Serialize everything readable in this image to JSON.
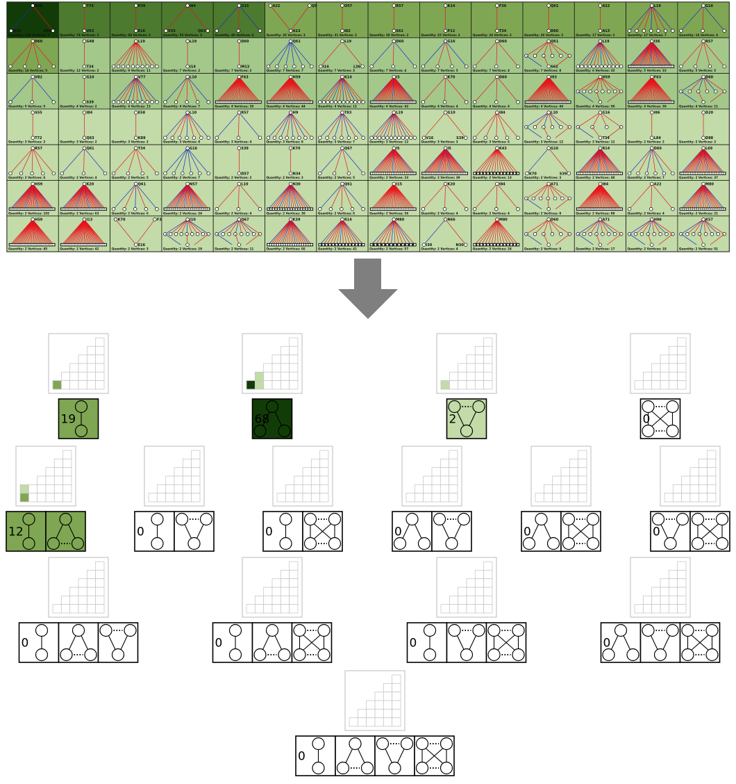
{
  "colors": {
    "edge_red": "#e8141b",
    "edge_blue": "#1a2cc4",
    "arrow": "#7f7f7f",
    "scale": [
      "#ffffff",
      "#c2dba8",
      "#a3c88a",
      "#7fa653",
      "#4c7a2e",
      "#123c07"
    ]
  },
  "tiles": [
    {
      "top": "N56",
      "left": "Q39",
      "right": "A50",
      "pattern": "v",
      "blue": 1,
      "caption": "Quantity: 144 Vertices: 3",
      "shade": 5
    },
    {
      "top": "T74",
      "left": "",
      "right": "",
      "bottom": "V63",
      "pattern": "chain",
      "caption": "Quantity: 74 Vertices: 2",
      "shade": 4
    },
    {
      "top": "P39",
      "left": "",
      "right": "",
      "bottom": "E16",
      "pattern": "chain",
      "caption": "Quantity: 68 Vertices: 2",
      "shade": 4
    },
    {
      "top": "I84",
      "left": "V33",
      "right": "Q63",
      "pattern": "v",
      "caption": "Quantity: 55 Vertices: 3",
      "shade": 4
    },
    {
      "top": "G15",
      "left": "K70",
      "right": "R70",
      "mid": "S39",
      "pattern": "fan",
      "n": 3,
      "blue": 1,
      "caption": "Quantity: 40 Vertices: 4",
      "shade": 4
    },
    {
      "top": "A22",
      "top2": "Q92",
      "left": "",
      "right": "",
      "bottom": "A13",
      "pattern": "merge",
      "caption": "Quantity: 35 Vertices: 3",
      "shade": 3
    },
    {
      "top": "O57",
      "bottom": "I82",
      "pattern": "chain",
      "caption": "Quantity: 31 Vertices: 2",
      "shade": 3
    },
    {
      "top": "R57",
      "bottom": "S61",
      "pattern": "chain",
      "caption": "Quantity: 28 Vertices: 2",
      "shade": 3
    },
    {
      "top": "K14",
      "bottom": "P12",
      "pattern": "chain",
      "caption": "Quantity: 25 Vertices: 2",
      "shade": 3
    },
    {
      "top": "F36",
      "bottom": "T34",
      "pattern": "chain",
      "caption": "Quantity: 24 Vertices: 2",
      "shade": 3
    },
    {
      "top": "Q61",
      "bottom": "D60",
      "pattern": "chain",
      "caption": "Quantity: 20 Vertices: 2",
      "shade": 3
    },
    {
      "top": "A22",
      "bottom": "A13",
      "pattern": "chain",
      "caption": "Quantity: 17 Vertices: 2",
      "shade": 3
    },
    {
      "top": "L19",
      "pattern": "fan",
      "n": 7,
      "blue": 2,
      "caption": "Quantity: 17 Vertices: 7",
      "shade": 3
    },
    {
      "top": "G16",
      "left": "T63",
      "right": "A56",
      "mid": "P39",
      "pattern": "fan",
      "n": 3,
      "blue": 1,
      "caption": "Quantity: 16 Vertices: 4",
      "shade": 3
    },
    {
      "top": "D60",
      "pattern": "fan",
      "n": 4,
      "caption": "Quantity: 14 Vertices: 5",
      "shade": 3
    },
    {
      "top": "G48",
      "bottom": "T34",
      "pattern": "chain",
      "caption": "Quantity: 12 Vertices: 2",
      "shade": 2
    },
    {
      "top": "L19",
      "pattern": "fan",
      "n": 10,
      "caption": "Quantity: 9 Vertices: 11",
      "shade": 2
    },
    {
      "top": "L19",
      "bottom": "I14",
      "pattern": "chain",
      "caption": "Quantity: 7 Vertices: 2",
      "shade": 2
    },
    {
      "top": "D60",
      "bottom": "M13",
      "pattern": "chain",
      "caption": "Quantity: 7 Vertices: 2",
      "shade": 2
    },
    {
      "top": "Q61",
      "pattern": "fan",
      "n": 6,
      "blue": 3,
      "caption": "Quantity: 7 Vertices: 7",
      "shade": 2
    },
    {
      "top": "L19",
      "left": "I14",
      "right": "L36",
      "pattern": "v",
      "caption": "Quantity: 7 Vertices: 3",
      "shade": 2
    },
    {
      "top": "D60",
      "pattern": "fan",
      "n": 3,
      "blue": 1,
      "caption": "Quantity: 7 Vertices: 4",
      "shade": 2
    },
    {
      "top": "G16",
      "pattern": "fan",
      "n": 4,
      "blue": 1,
      "caption": "Quantity: 7 Vertices: 5",
      "shade": 2
    },
    {
      "top": "D60",
      "left": "A16",
      "right": "N13",
      "mid": "V36",
      "pattern": "fan",
      "n": 3,
      "caption": "Quantity: 7 Vertices: 4",
      "shade": 2
    },
    {
      "top": "Q61",
      "bottom": "S61",
      "pattern": "cluster",
      "n": 6,
      "caption": "Quantity: 7 Vertices: 8",
      "shade": 2
    },
    {
      "top": "L19",
      "pattern": "fan",
      "n": 12,
      "blue": 3,
      "caption": "Quantity: 6 Vertices: 33",
      "shade": 2
    },
    {
      "top": "I36",
      "pattern": "dense",
      "n": 30,
      "blue": 4,
      "caption": "Quantity: 5 Vertices: 33",
      "shade": 2
    },
    {
      "top": "R57",
      "pattern": "fan",
      "n": 4,
      "caption": "Quantity: 5 Vertices: 5",
      "shade": 2
    },
    {
      "top": "V82",
      "pattern": "fan",
      "n": 3,
      "blue": 1,
      "caption": "Quantity: 5 Vertices: 5",
      "shade": 2
    },
    {
      "top": "G10",
      "bottom": "S39",
      "pattern": "chain",
      "caption": "Quantity: 4 Vertices: 2",
      "shade": 2
    },
    {
      "top": "V77",
      "pattern": "fan",
      "n": 10,
      "blue": 3,
      "caption": "Quantity: 4 Vertices: 13",
      "shade": 2
    },
    {
      "top": "L10",
      "pattern": "fan",
      "n": 5,
      "blue": 1,
      "caption": "Quantity: 4 Vertices: 7",
      "shade": 2
    },
    {
      "top": "F63",
      "pattern": "dense",
      "n": 28,
      "caption": "Quantity: 4 Vertices: 29",
      "shade": 2
    },
    {
      "top": "H59",
      "pattern": "dense",
      "n": 30,
      "caption": "Quantity: 4 Vertices: 44",
      "shade": 2
    },
    {
      "top": "K14",
      "pattern": "fan",
      "n": 12,
      "blue": 3,
      "caption": "Quantity: 4 Vertices: 12",
      "shade": 2
    },
    {
      "top": "I3",
      "pattern": "dense",
      "n": 30,
      "blue": 2,
      "caption": "Quantity: 4 Vertices: 42",
      "shade": 2
    },
    {
      "top": "K70",
      "pattern": "fan",
      "n": 3,
      "caption": "Quantity: 4 Vertices: 4",
      "shade": 2
    },
    {
      "top": "D60",
      "pattern": "fan",
      "n": 3,
      "caption": "Quantity: 4 Vertices: 4",
      "shade": 2
    },
    {
      "top": "I93",
      "pattern": "dense",
      "n": 30,
      "caption": "Quantity: 4 Vertices: 44",
      "shade": 2
    },
    {
      "top": "H59",
      "pattern": "cluster2",
      "n": 8,
      "caption": "Quantity: 4 Vertices: 50",
      "shade": 2
    },
    {
      "top": "F63",
      "bottom": "V63",
      "pattern": "dense",
      "n": 30,
      "caption": "Quantity: 4 Vertices: 38",
      "shade": 2
    },
    {
      "top": "D60",
      "pattern": "cluster",
      "n": 6,
      "blue": 2,
      "caption": "Quantity: 4 Vertices: 11",
      "shade": 2
    },
    {
      "top": "S55",
      "bottom": "T72",
      "pattern": "chain",
      "caption": "Quantity: 3 Vertices: 2",
      "shade": 1
    },
    {
      "top": "I84",
      "bottom": "Q63",
      "pattern": "chain",
      "caption": "Quantity: 3 Vertices: 2",
      "shade": 1
    },
    {
      "top": "E58",
      "bottom": "K89",
      "pattern": "chain",
      "caption": "Quantity: 3 Vertices: 2",
      "shade": 1
    },
    {
      "top": "L10",
      "pattern": "fan",
      "n": 7,
      "blue": 2,
      "caption": "Quantity: 3 Vertices: 8",
      "shade": 1
    },
    {
      "top": "R57",
      "pattern": "fan",
      "n": 3,
      "blue": 1,
      "caption": "Quantity: 3 Vertices: 4",
      "shade": 1
    },
    {
      "top": "H9",
      "pattern": "fan",
      "n": 8,
      "blue": 3,
      "caption": "Quantity: 3 Vertices: 8",
      "shade": 1
    },
    {
      "top": "T83",
      "pattern": "fan",
      "n": 7,
      "blue": 3,
      "caption": "Quantity: 3 Vertices: 7",
      "shade": 1
    },
    {
      "top": "L19",
      "pattern": "fan",
      "n": 12,
      "blue": 3,
      "caption": "Quantity: 3 Vertices: 12",
      "shade": 1
    },
    {
      "top": "G10",
      "left": "V16",
      "right": "S39",
      "pattern": "v",
      "caption": "Quantity: 3 Vertices: 3",
      "shade": 1
    },
    {
      "top": "I84",
      "pattern": "fan",
      "n": 5,
      "caption": "Quantity: 3 Vertices: 6",
      "shade": 1
    },
    {
      "top": "L10",
      "pattern": "cluster",
      "n": 6,
      "blue": 2,
      "caption": "Quantity: 3 Vertices: 12",
      "shade": 1
    },
    {
      "top": "G16",
      "bottom": "T34",
      "pattern": "cluster",
      "n": 4,
      "caption": "Quantity: 3 Vertices: 12",
      "shade": 1
    },
    {
      "top": "I86",
      "bottom": "L84",
      "pattern": "chain",
      "caption": "Quantity: 2 Vertices: 2",
      "shade": 1
    },
    {
      "top": "D20",
      "bottom": "D88",
      "pattern": "chain",
      "caption": "Quantity: 2 Vertices: 2",
      "shade": 1
    },
    {
      "top": "R57",
      "pattern": "fan",
      "n": 5,
      "caption": "Quantity: 2 Vertices: 6",
      "shade": 1
    },
    {
      "top": "Q61",
      "pattern": "fan",
      "n": 3,
      "blue": 1,
      "caption": "Quantity: 2 Vertices: 4",
      "shade": 1
    },
    {
      "top": "T34",
      "pattern": "fan",
      "n": 4,
      "caption": "Quantity: 2 Vertices: 5",
      "shade": 1
    },
    {
      "top": "G16",
      "pattern": "fan",
      "n": 6,
      "blue": 3,
      "caption": "Quantity: 2 Vertices: 7",
      "shade": 1
    },
    {
      "top": "S39",
      "bottom": "D57",
      "pattern": "chain",
      "caption": "Quantity: 2 Vertices: 2",
      "shade": 1
    },
    {
      "top": "K70",
      "bottom": "N34",
      "pattern": "chain",
      "caption": "Quantity: 2 Vertices: 2",
      "shade": 1
    },
    {
      "top": "Q67",
      "pattern": "fan",
      "n": 4,
      "blue": 1,
      "caption": "Quantity: 2 Vertices: 5",
      "shade": 1
    },
    {
      "top": "I5",
      "pattern": "dense",
      "n": 24,
      "blue": 2,
      "caption": "Quantity: 2 Vertices: 33",
      "shade": 1
    },
    {
      "top": "I5",
      "pattern": "dense",
      "n": 28,
      "blue": 3,
      "caption": "Quantity: 2 Vertices: 39",
      "shade": 1
    },
    {
      "top": "K43",
      "pattern": "dense",
      "n": 14,
      "caption": "Quantity: 2 Vertices: 13",
      "shade": 1
    },
    {
      "top": "G16",
      "left": "K70",
      "right": "S39",
      "pattern": "v",
      "blue": 1,
      "caption": "Quantity: 2 Vertices: 3",
      "shade": 1
    },
    {
      "top": "R14",
      "pattern": "dense",
      "n": 26,
      "blue": 4,
      "caption": "Quantity: 2 Vertices: 40",
      "shade": 1
    },
    {
      "top": "D60",
      "pattern": "fan",
      "n": 6,
      "blue": 2,
      "caption": "Quantity: 2 Vertices: 7",
      "shade": 1
    },
    {
      "top": "L69",
      "pattern": "dense",
      "n": 26,
      "blue": 3,
      "caption": "Quantity: 2 Vertices: 37",
      "shade": 1
    },
    {
      "top": "H59",
      "pattern": "dense",
      "n": 32,
      "blue": 3,
      "caption": "Quantity: 2 Vertices: 102",
      "shade": 1
    },
    {
      "top": "K20",
      "pattern": "dense",
      "n": 30,
      "blue": 3,
      "caption": "Quantity: 2 Vertices: 63",
      "shade": 1
    },
    {
      "top": "Q61",
      "pattern": "fan",
      "n": 5,
      "blue": 2,
      "caption": "Quantity: 2 Vertices: 6",
      "shade": 1
    },
    {
      "top": "N57",
      "pattern": "dense",
      "n": 24,
      "blue": 4,
      "caption": "Quantity: 2 Vertices: 24",
      "shade": 1
    },
    {
      "top": "L10",
      "pattern": "fan",
      "n": 3,
      "caption": "Quantity: 2 Vertices: 4",
      "shade": 1
    },
    {
      "top": "N30",
      "pattern": "dense",
      "n": 18,
      "blue": 4,
      "caption": "Quantity: 2 Vertices: 30",
      "shade": 1
    },
    {
      "top": "Q61",
      "pattern": "fan",
      "n": 5,
      "blue": 1,
      "caption": "Quantity: 2 Vertices: 6",
      "shade": 1
    },
    {
      "top": "I15",
      "pattern": "dense",
      "n": 26,
      "caption": "Quantity: 2 Vertices: 36",
      "shade": 1
    },
    {
      "top": "K20",
      "pattern": "fan",
      "n": 3,
      "caption": "Quantity: 2 Vertices: 4",
      "shade": 1
    },
    {
      "top": "I84",
      "pattern": "fan",
      "n": 3,
      "caption": "Quantity: 2 Vertices: 4",
      "shade": 1
    },
    {
      "top": "A71",
      "pattern": "cluster",
      "n": 7,
      "caption": "Quantity: 2 Vertices: 8",
      "shade": 1
    },
    {
      "top": "I84",
      "pattern": "dense",
      "n": 30,
      "caption": "Quantity: 2 Vertices: 88",
      "shade": 1
    },
    {
      "top": "A22",
      "pattern": "fan",
      "n": 3,
      "caption": "Quantity: 2 Vertices: 4",
      "shade": 1
    },
    {
      "top": "M80",
      "pattern": "dense",
      "n": 22,
      "blue": 3,
      "caption": "Quantity: 2 Vertices: 21",
      "shade": 1
    },
    {
      "top": "H59",
      "pattern": "dense",
      "n": 30,
      "caption": "Quantity: 2 Vertices: 45",
      "shade": 1
    },
    {
      "top": "I13",
      "pattern": "dense",
      "n": 30,
      "caption": "Quantity: 2 Vertices: 42",
      "shade": 1
    },
    {
      "top": "K70",
      "top2": "F38",
      "bottom": "E16",
      "pattern": "merge",
      "caption": "Quantity: 2 Vertices: 3",
      "shade": 1
    },
    {
      "top": "I10",
      "pattern": "cluster2",
      "n": 9,
      "blue": 2,
      "caption": "Quantity: 2 Vertices: 19",
      "shade": 1
    },
    {
      "top": "Q67",
      "pattern": "cluster",
      "n": 8,
      "blue": 2,
      "caption": "Quantity: 2 Vertices: 11",
      "shade": 1
    },
    {
      "top": "K39",
      "pattern": "dense",
      "n": 20,
      "blue": 3,
      "caption": "Quantity: 2 Vertices: 66",
      "shade": 1
    },
    {
      "top": "R14",
      "pattern": "dense",
      "n": 14,
      "blue": 2,
      "caption": "Quantity: 2 Vertices: 41",
      "shade": 1
    },
    {
      "top": "M80",
      "pattern": "dense",
      "n": 12,
      "blue": 2,
      "caption": "Quantity: 2 Vertices: 57",
      "shade": 1
    },
    {
      "top": "N66",
      "left": "I30",
      "right": "N30",
      "pattern": "v",
      "blue": 1,
      "caption": "Quantity: 2 Vertices: 4",
      "shade": 1
    },
    {
      "top": "M80",
      "pattern": "dense",
      "n": 14,
      "caption": "Quantity: 2 Vertices: 24",
      "shade": 1
    },
    {
      "top": "D60",
      "pattern": "cluster",
      "n": 6,
      "caption": "Quantity: 2 Vertices: 9",
      "shade": 1
    },
    {
      "top": "A71",
      "pattern": "cluster2",
      "n": 8,
      "blue": 2,
      "caption": "Quantity: 2 Vertices: 17",
      "shade": 1
    },
    {
      "top": "H96",
      "pattern": "cluster2",
      "n": 8,
      "blue": 2,
      "caption": "Quantity: 2 Vertices: 18",
      "shade": 1
    },
    {
      "top": "K57",
      "pattern": "cluster2",
      "n": 8,
      "blue": 2,
      "caption": "Quantity: 2 Vertices: 51",
      "shade": 1
    }
  ],
  "levels": [
    {
      "rows": 1,
      "items": [
        {
          "filled": [
            [
              0,
              0
            ]
          ],
          "counts": [
            "19"
          ],
          "shapes": [
            "chain"
          ],
          "shade": [
            3
          ]
        }
      ]
    },
    {
      "rows": 2,
      "items": [
        {
          "filled": [
            [
              0,
              0
            ],
            [
              0,
              1
            ],
            [
              1,
              1
            ]
          ],
          "counts": [
            "68"
          ],
          "shapes": [
            "v"
          ],
          "shade": [
            5
          ]
        },
        {
          "filled": [
            [
              0,
              0
            ]
          ],
          "counts": [
            "2"
          ],
          "shapes": [
            "merge"
          ],
          "shade": [
            1
          ]
        },
        {
          "filled": [],
          "counts": [
            "0"
          ],
          "shapes": [
            "cross2"
          ],
          "shade": [
            0
          ]
        }
      ]
    },
    {
      "rows": 3,
      "items": [
        {
          "filled": [
            [
              0,
              0
            ],
            [
              1,
              0
            ]
          ],
          "counts": [
            "12",
            ""
          ],
          "shapes": [
            "chain",
            "v-dots"
          ],
          "shade": [
            3,
            3
          ]
        },
        {
          "filled": [],
          "counts": [
            "0",
            ""
          ],
          "shapes": [
            "chain",
            "merge-dots"
          ],
          "shade": [
            0,
            0
          ]
        },
        {
          "filled": [],
          "counts": [
            "0",
            ""
          ],
          "shapes": [
            "chain",
            "cross"
          ],
          "shade": [
            0,
            0
          ]
        },
        {
          "filled": [],
          "counts": [
            "0",
            ""
          ],
          "shapes": [
            "v",
            "merge-dots"
          ],
          "shade": [
            0,
            0
          ]
        },
        {
          "filled": [],
          "counts": [
            "0",
            ""
          ],
          "shapes": [
            "v",
            "cross"
          ],
          "shade": [
            0,
            0
          ]
        },
        {
          "filled": [],
          "counts": [
            "0",
            ""
          ],
          "shapes": [
            "merge-dots",
            "cross"
          ],
          "shade": [
            0,
            0
          ]
        }
      ]
    },
    {
      "rows": 4,
      "items": [
        {
          "filled": [],
          "counts": [
            "0",
            "",
            ""
          ],
          "shapes": [
            "chain",
            "v-dots",
            "merge-dots"
          ],
          "shade": [
            0,
            0,
            0
          ]
        },
        {
          "filled": [],
          "counts": [
            "0",
            "",
            ""
          ],
          "shapes": [
            "chain",
            "v-dots",
            "cross"
          ],
          "shade": [
            0,
            0,
            0
          ]
        },
        {
          "filled": [],
          "counts": [
            "0",
            "",
            ""
          ],
          "shapes": [
            "chain",
            "merge-dots",
            "cross"
          ],
          "shade": [
            0,
            0,
            0
          ]
        },
        {
          "filled": [],
          "counts": [
            "0",
            "",
            ""
          ],
          "shapes": [
            "v",
            "merge-dots",
            "cross"
          ],
          "shade": [
            0,
            0,
            0
          ]
        }
      ]
    },
    {
      "rows": 5,
      "items": [
        {
          "filled": [],
          "counts": [
            "0",
            "",
            "",
            ""
          ],
          "shapes": [
            "chain",
            "v-dots",
            "merge-dots",
            "cross"
          ],
          "shade": [
            0,
            0,
            0,
            0
          ]
        }
      ]
    }
  ]
}
